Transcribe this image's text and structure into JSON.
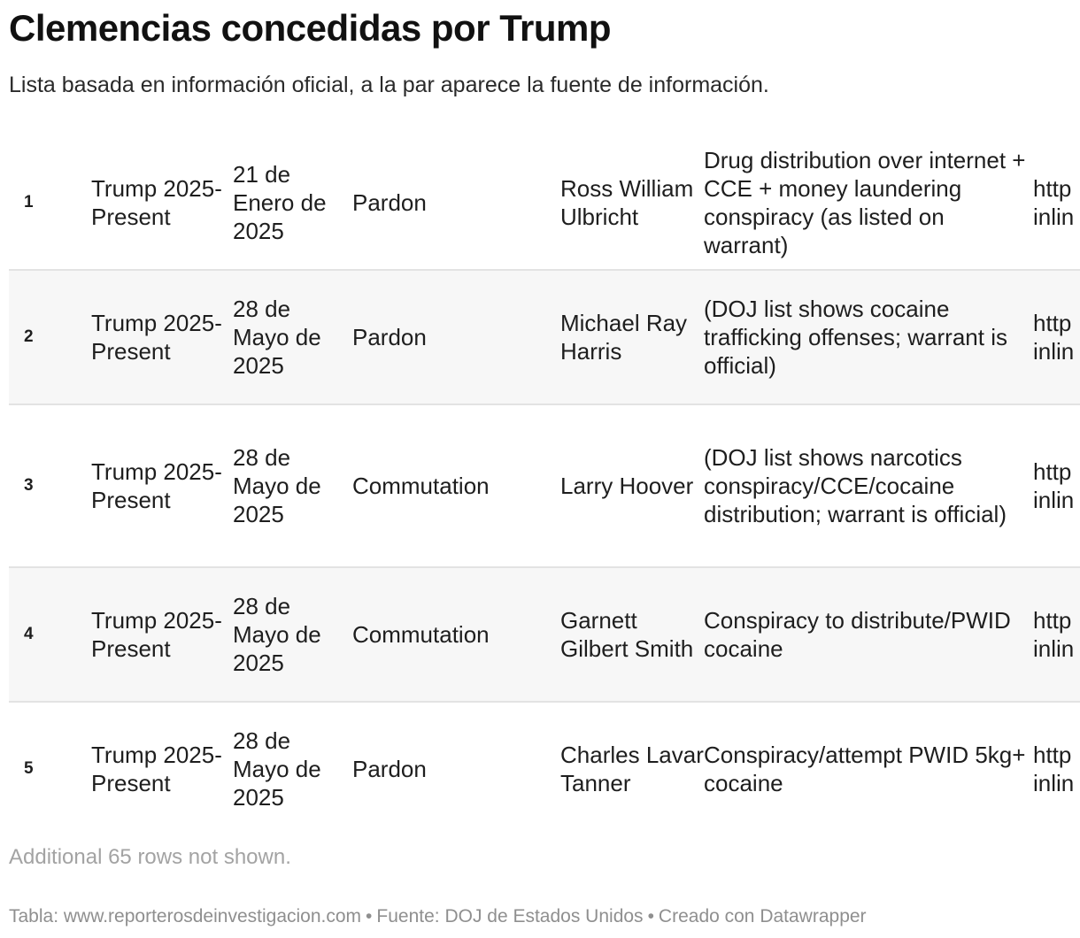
{
  "header": {
    "title": "Clemencias concedidas por Trump",
    "subtitle": "Lista basada en información oficial, a la par aparece la fuente de información."
  },
  "table": {
    "rows": [
      {
        "num": "1",
        "administration": "Trump 2025-Present",
        "date": "21 de Enero de 2025",
        "type": "Pardon",
        "name": "Ross William Ulbricht",
        "offense": "Drug distribution over internet + CCE + money laundering conspiracy (as listed on warrant)",
        "source": "http inlin"
      },
      {
        "num": "2",
        "administration": "Trump 2025-Present",
        "date": "28 de Mayo de 2025",
        "type": "Pardon",
        "name": "Michael Ray Harris",
        "offense": "(DOJ list shows cocaine trafficking offenses; warrant is official)",
        "source": "http inlin"
      },
      {
        "num": "3",
        "administration": "Trump 2025-Present",
        "date": "28 de Mayo de 2025",
        "type": "Commutation",
        "name": "Larry Hoover",
        "offense": "(DOJ list shows narcotics conspiracy/CCE/cocaine distribution; warrant is official)",
        "source": "http inlin"
      },
      {
        "num": "4",
        "administration": "Trump 2025-Present",
        "date": "28 de Mayo de 2025",
        "type": "Commutation",
        "name": "Garnett Gilbert Smith",
        "offense": "Conspiracy to distribute/PWID cocaine",
        "source": "http inlin"
      },
      {
        "num": "5",
        "administration": "Trump 2025-Present",
        "date": "28 de Mayo de 2025",
        "type": "Pardon",
        "name": "Charles Lavar Tanner",
        "offense": "Conspiracy/attempt PWID 5kg+ cocaine",
        "source": "http inlin"
      }
    ],
    "more_rows_note": "Additional 65 rows not shown."
  },
  "footer": {
    "table_credit": "Tabla: www.reporterosdeinvestigacion.com",
    "source_credit": "Fuente: DOJ de Estados Unidos",
    "tool_credit": "Creado con Datawrapper",
    "separator": "•"
  }
}
